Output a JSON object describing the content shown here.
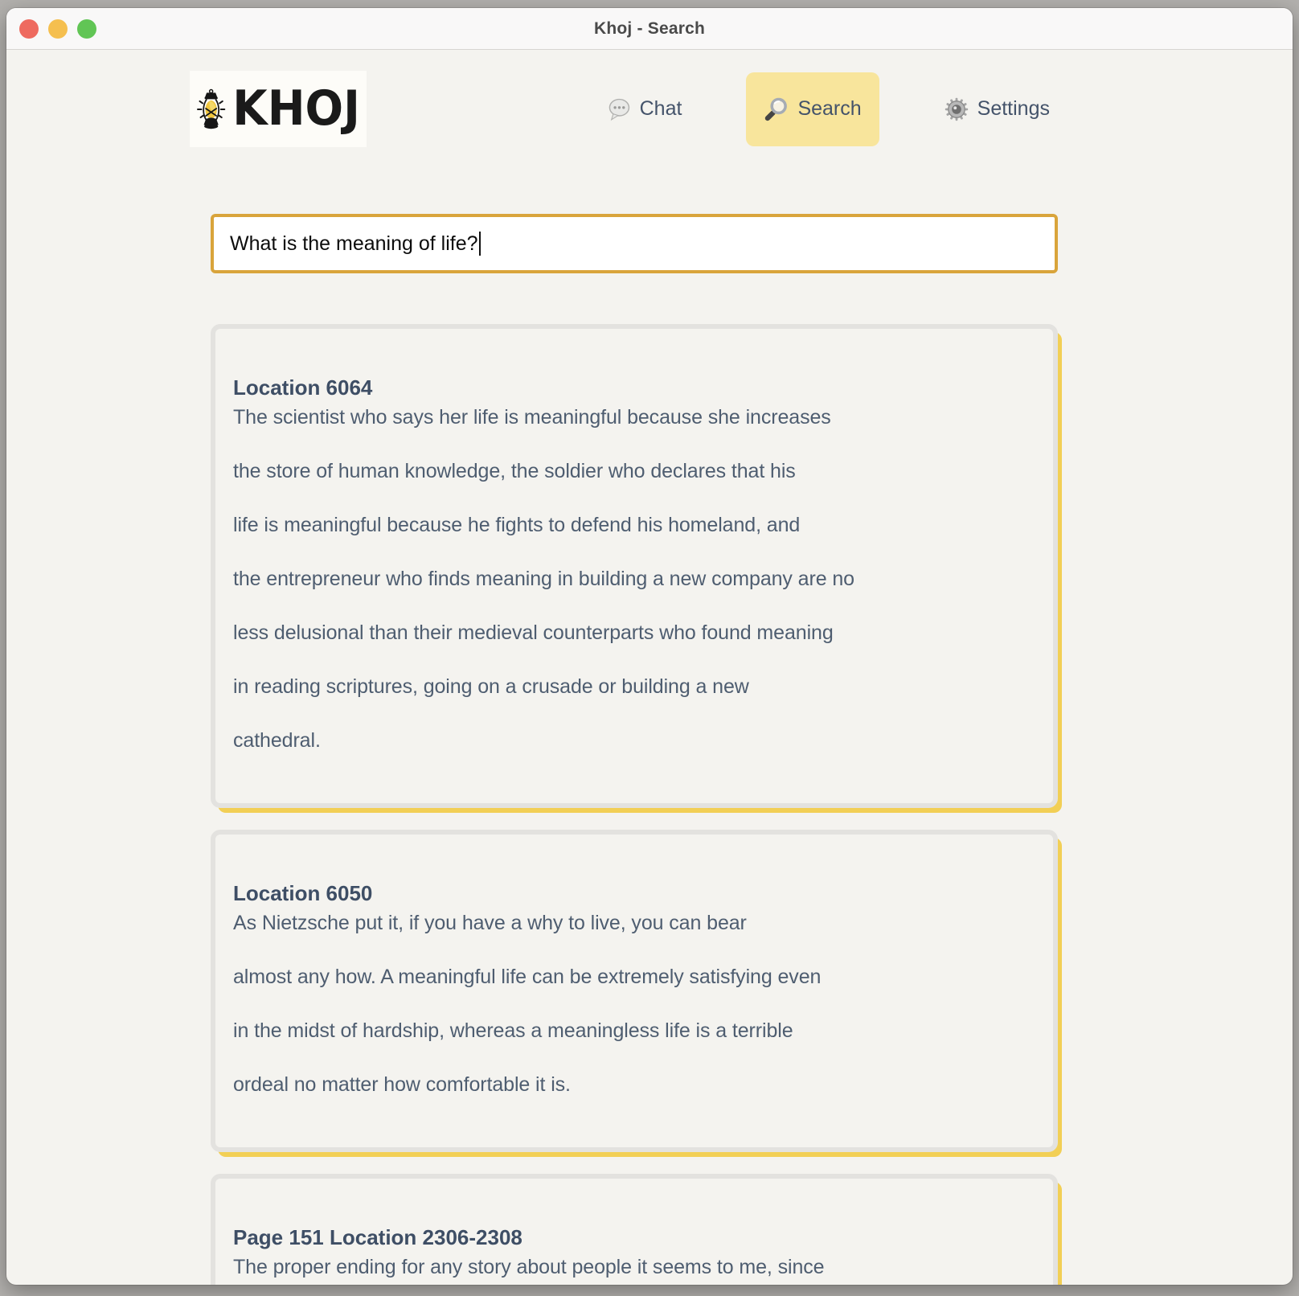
{
  "window": {
    "title": "Khoj - Search"
  },
  "titlebar_controls": [
    "close",
    "minimize",
    "zoom"
  ],
  "brand": {
    "name": "KHOJ",
    "logo_icon": "lantern-icon"
  },
  "nav": {
    "items": [
      {
        "label": "Chat",
        "icon": "chat-bubble-icon",
        "active": false
      },
      {
        "label": "Search",
        "icon": "magnifying-glass-icon",
        "active": true
      },
      {
        "label": "Settings",
        "icon": "gear-icon",
        "active": false
      }
    ]
  },
  "search": {
    "value": "What is the meaning of life?"
  },
  "results": [
    {
      "title": "Location 6064",
      "lines": [
        "The scientist who says her life is meaningful because she increases",
        "the store of human knowledge, the soldier who declares that his",
        "life is meaningful because he fights to defend his homeland, and",
        "the entrepreneur who finds meaning in building a new company are no",
        "less delusional than their medieval counterparts who found meaning",
        "in reading scriptures, going on a crusade or building a new",
        "cathedral."
      ]
    },
    {
      "title": "Location 6050",
      "lines": [
        "As Nietzsche put it, if you have a why to live, you can bear",
        "almost any how. A meaningful life can be extremely satisfying even",
        "in the midst of hardship, whereas a meaningless life is a terrible",
        "ordeal no matter how comfortable it is."
      ]
    },
    {
      "title": "Page 151 Location 2306-2308",
      "lines": [
        "The proper ending for any story about people it seems to me, since"
      ]
    }
  ],
  "colors": {
    "accent_yellow": "#f8e59c",
    "card_shadow_yellow": "#f2cf55",
    "input_border_gold": "#d9a43b",
    "traffic_red": "#ee6a5f",
    "traffic_yellow": "#f5bf4f",
    "traffic_green": "#61c555",
    "heading_text": "#3e4e65",
    "body_text": "#4e5d70",
    "page_background": "#f4f3ef"
  }
}
